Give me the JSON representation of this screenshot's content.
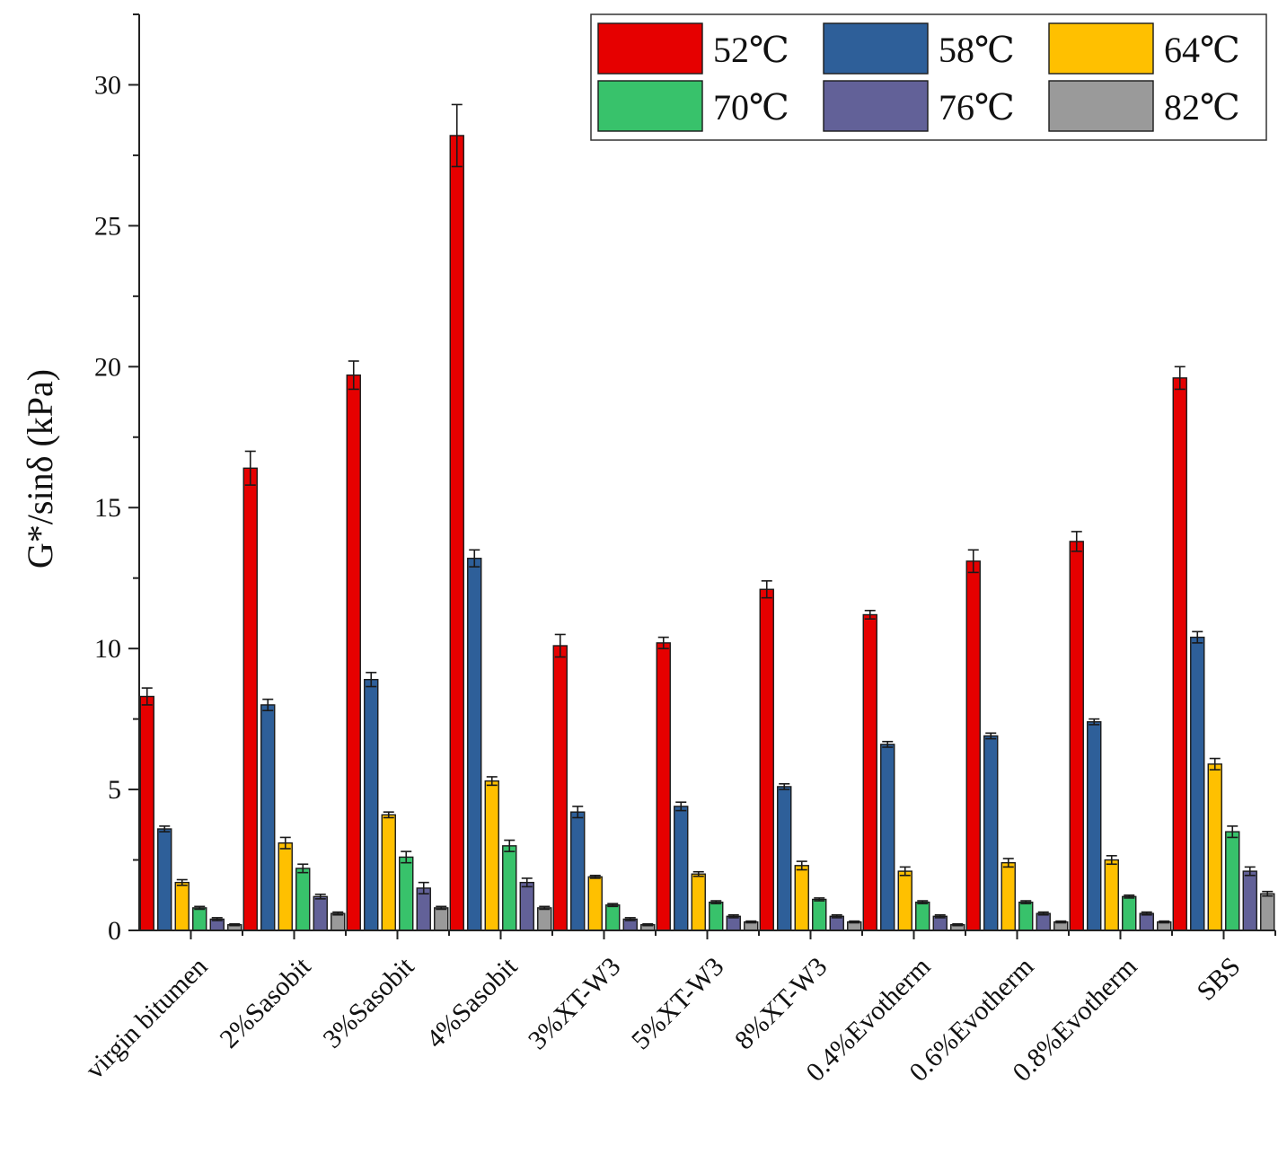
{
  "chart_data": {
    "type": "bar",
    "title": "",
    "xlabel": "",
    "ylabel": "G*/sinδ (kPa)",
    "ylim": [
      0,
      32.5
    ],
    "yticks": [
      0,
      5,
      10,
      15,
      20,
      25,
      30
    ],
    "grid": false,
    "legend_position": "top-right",
    "categories": [
      "virgin bitumen",
      "2%Sasobit",
      "3%Sasobit",
      "4%Sasobit",
      "3%XT-W3",
      "5%XT-W3",
      "8%XT-W3",
      "0.4%Evotherm",
      "0.6%Evotherm",
      "0.8%Evotherm",
      "SBS"
    ],
    "series": [
      {
        "name": "52℃",
        "color": "#e60000",
        "values": [
          8.3,
          16.4,
          19.7,
          28.2,
          10.1,
          10.2,
          12.1,
          11.2,
          13.1,
          13.8,
          19.6
        ],
        "errors": [
          0.3,
          0.6,
          0.5,
          1.1,
          0.4,
          0.2,
          0.3,
          0.15,
          0.4,
          0.35,
          0.4
        ]
      },
      {
        "name": "58℃",
        "color": "#2e5f99",
        "values": [
          3.6,
          8.0,
          8.9,
          13.2,
          4.2,
          4.4,
          5.1,
          6.6,
          6.9,
          7.4,
          10.4
        ],
        "errors": [
          0.1,
          0.2,
          0.25,
          0.3,
          0.2,
          0.15,
          0.1,
          0.1,
          0.1,
          0.1,
          0.2
        ]
      },
      {
        "name": "64℃",
        "color": "#ffc000",
        "values": [
          1.7,
          3.1,
          4.1,
          5.3,
          1.9,
          2.0,
          2.3,
          2.1,
          2.4,
          2.5,
          5.9
        ],
        "errors": [
          0.1,
          0.2,
          0.1,
          0.15,
          0.05,
          0.08,
          0.15,
          0.15,
          0.15,
          0.15,
          0.2
        ]
      },
      {
        "name": "70℃",
        "color": "#38c26b",
        "values": [
          0.8,
          2.2,
          2.6,
          3.0,
          0.9,
          1.0,
          1.1,
          1.0,
          1.0,
          1.2,
          3.5
        ],
        "errors": [
          0.05,
          0.15,
          0.2,
          0.2,
          0.05,
          0.05,
          0.05,
          0.05,
          0.05,
          0.05,
          0.2
        ]
      },
      {
        "name": "76℃",
        "color": "#626198",
        "values": [
          0.4,
          1.2,
          1.5,
          1.7,
          0.4,
          0.5,
          0.5,
          0.5,
          0.6,
          0.6,
          2.1
        ],
        "errors": [
          0.05,
          0.08,
          0.2,
          0.15,
          0.05,
          0.05,
          0.05,
          0.05,
          0.05,
          0.05,
          0.15
        ]
      },
      {
        "name": "82℃",
        "color": "#9a9a9a",
        "values": [
          0.2,
          0.6,
          0.8,
          0.8,
          0.2,
          0.3,
          0.3,
          0.2,
          0.3,
          0.3,
          1.3
        ],
        "errors": [
          0.03,
          0.05,
          0.05,
          0.05,
          0.03,
          0.03,
          0.03,
          0.03,
          0.03,
          0.03,
          0.08
        ]
      }
    ]
  }
}
